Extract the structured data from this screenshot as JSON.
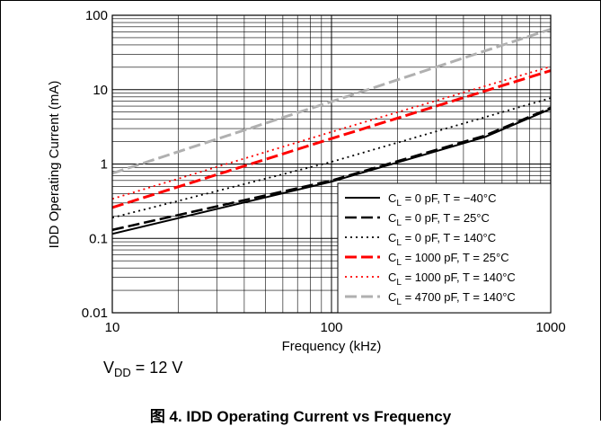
{
  "chart_data": {
    "type": "line",
    "xlabel": "Frequency (kHz)",
    "ylabel": "IDD Operating Current (mA)",
    "xscale": "log",
    "yscale": "log",
    "xlim": [
      10,
      1000
    ],
    "ylim": [
      0.01,
      100
    ],
    "x_ticks": [
      "10",
      "100",
      "1000"
    ],
    "y_ticks": [
      "0.01",
      "0.1",
      "1",
      "10",
      "100"
    ],
    "grid": true,
    "legend_position": "bottom-right",
    "series": [
      {
        "name_main": "C",
        "name_sub": "L",
        "name_rest": " = 0 pF, T = −40°C",
        "color": "#000000",
        "style": "solid",
        "x": [
          10,
          100,
          500,
          1000
        ],
        "y": [
          0.115,
          0.58,
          2.3,
          5.5
        ]
      },
      {
        "name_main": "C",
        "name_sub": "L",
        "name_rest": " = 0 pF, T = 25°C",
        "color": "#000000",
        "style": "dashed",
        "x": [
          10,
          100,
          500,
          1000
        ],
        "y": [
          0.13,
          0.6,
          2.4,
          5.7
        ]
      },
      {
        "name_main": "C",
        "name_sub": "L",
        "name_rest": " = 0 pF, T = 140°C",
        "color": "#000000",
        "style": "dotted",
        "x": [
          10,
          100,
          1000
        ],
        "y": [
          0.19,
          1.07,
          7.7
        ]
      },
      {
        "name_main": "C",
        "name_sub": "L",
        "name_rest": " = 1000 pF, T = 25°C",
        "color": "#ff0000",
        "style": "dashed",
        "x": [
          10,
          100,
          1000
        ],
        "y": [
          0.26,
          2.2,
          18
        ]
      },
      {
        "name_main": "C",
        "name_sub": "L",
        "name_rest": " = 1000 pF, T = 140°C",
        "color": "#ff0000",
        "style": "dotted",
        "x": [
          10,
          100,
          1000
        ],
        "y": [
          0.34,
          2.7,
          20.5
        ]
      },
      {
        "name_main": "C",
        "name_sub": "L",
        "name_rest": " = 4700 pF, T = 140°C",
        "color": "#b0b0b0",
        "style": "dashed",
        "x": [
          10,
          100,
          1000
        ],
        "y": [
          0.75,
          6.9,
          65
        ]
      }
    ]
  },
  "note": {
    "prefix": "V",
    "sub": "DD",
    "rest": " = 12 V"
  },
  "caption": {
    "chinese": "图",
    "rest": " 4. IDD Operating Current vs Frequency"
  }
}
